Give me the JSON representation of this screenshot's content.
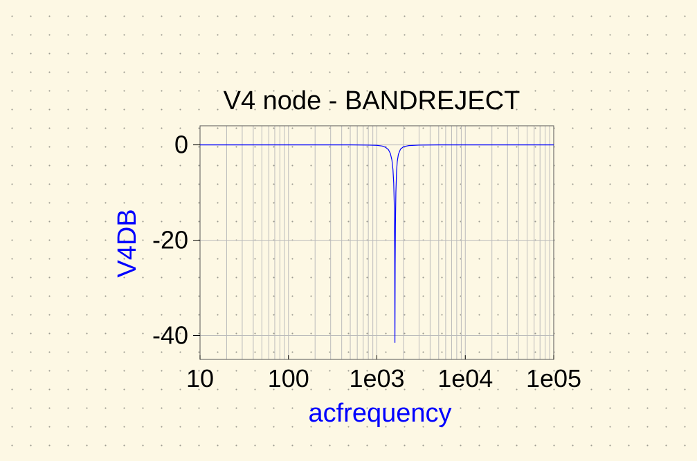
{
  "chart_data": {
    "type": "line",
    "title": "V4 node - BANDREJECT",
    "xlabel": "acfrequency",
    "ylabel": "V4DB",
    "x_scale": "log",
    "xlim": [
      10,
      100000
    ],
    "ylim": [
      -45,
      4
    ],
    "x_ticks": [
      "10",
      "100",
      "1e03",
      "1e04",
      "1e05"
    ],
    "y_ticks": [
      "0",
      "-20",
      "-40"
    ],
    "grid": true,
    "legend": "none",
    "series": [
      {
        "color": "#0000ff",
        "x": [
          10,
          100,
          500,
          800,
          1000,
          1150,
          1250,
          1350,
          1420,
          1480,
          1520,
          1550,
          1570,
          1580,
          1590,
          1600,
          1610,
          1620,
          1640,
          1670,
          1700,
          1750,
          1850,
          2000,
          2300,
          3000,
          5000,
          10000,
          100000
        ],
        "y": [
          0,
          0,
          0,
          -0.05,
          -0.1,
          -0.25,
          -0.5,
          -1.0,
          -1.8,
          -3.2,
          -5.2,
          -8.0,
          -12.0,
          -15.5,
          -22.0,
          -41.5,
          -25.0,
          -17.0,
          -10.0,
          -5.5,
          -3.5,
          -2.0,
          -0.9,
          -0.4,
          -0.15,
          -0.05,
          0,
          0,
          0
        ]
      }
    ]
  },
  "colors": {
    "background": "#fdf8e4",
    "plot_area": "#fdf8e4",
    "grid": "#bbbbbb",
    "frame": "#555555",
    "series": "#0000ff",
    "label": "#0000ff"
  }
}
